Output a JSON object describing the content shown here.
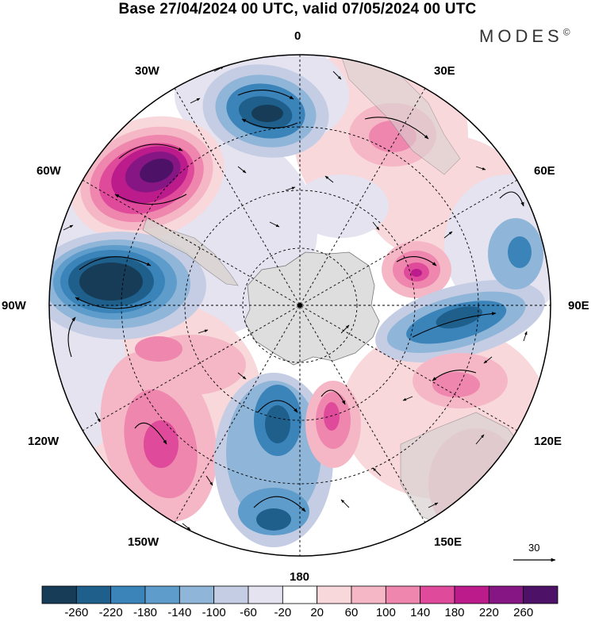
{
  "header": {
    "title": "Base 27/04/2024 00 UTC, valid 07/05/2024 00 UTC",
    "logo_text": "MODES",
    "logo_mark": "©"
  },
  "map": {
    "projection": "south-polar-stereographic",
    "longitude_labels": {
      "lon_0": "0",
      "lon_30e": "30E",
      "lon_60e": "60E",
      "lon_90e": "90E",
      "lon_120e": "120E",
      "lon_150e": "150E",
      "lon_180": "180",
      "lon_150w": "150W",
      "lon_120w": "120W",
      "lon_90w": "90W",
      "lon_60w": "60W",
      "lon_30w": "30W"
    },
    "vector_reference": "30",
    "colors": {
      "negative_strong": "#1a4e6e",
      "negative_light": "#d5d8ea",
      "positive_light": "#f9d5d8",
      "positive_strong": "#5a1a78",
      "land": "#d9d2d0"
    }
  },
  "colorbar": {
    "ticks": [
      "-260",
      "-220",
      "-180",
      "-140",
      "-100",
      "-60",
      "-20",
      "20",
      "60",
      "100",
      "140",
      "180",
      "220",
      "260"
    ],
    "colors": [
      "#173c58",
      "#1e5f8c",
      "#3a84ba",
      "#5e9ccb",
      "#8fb5d8",
      "#c4cde4",
      "#e4e3ef",
      "#ffffff",
      "#f9d8dc",
      "#f5b7c6",
      "#ee86ae",
      "#e04a9a",
      "#bc1b8c",
      "#861683",
      "#4d1268"
    ]
  }
}
